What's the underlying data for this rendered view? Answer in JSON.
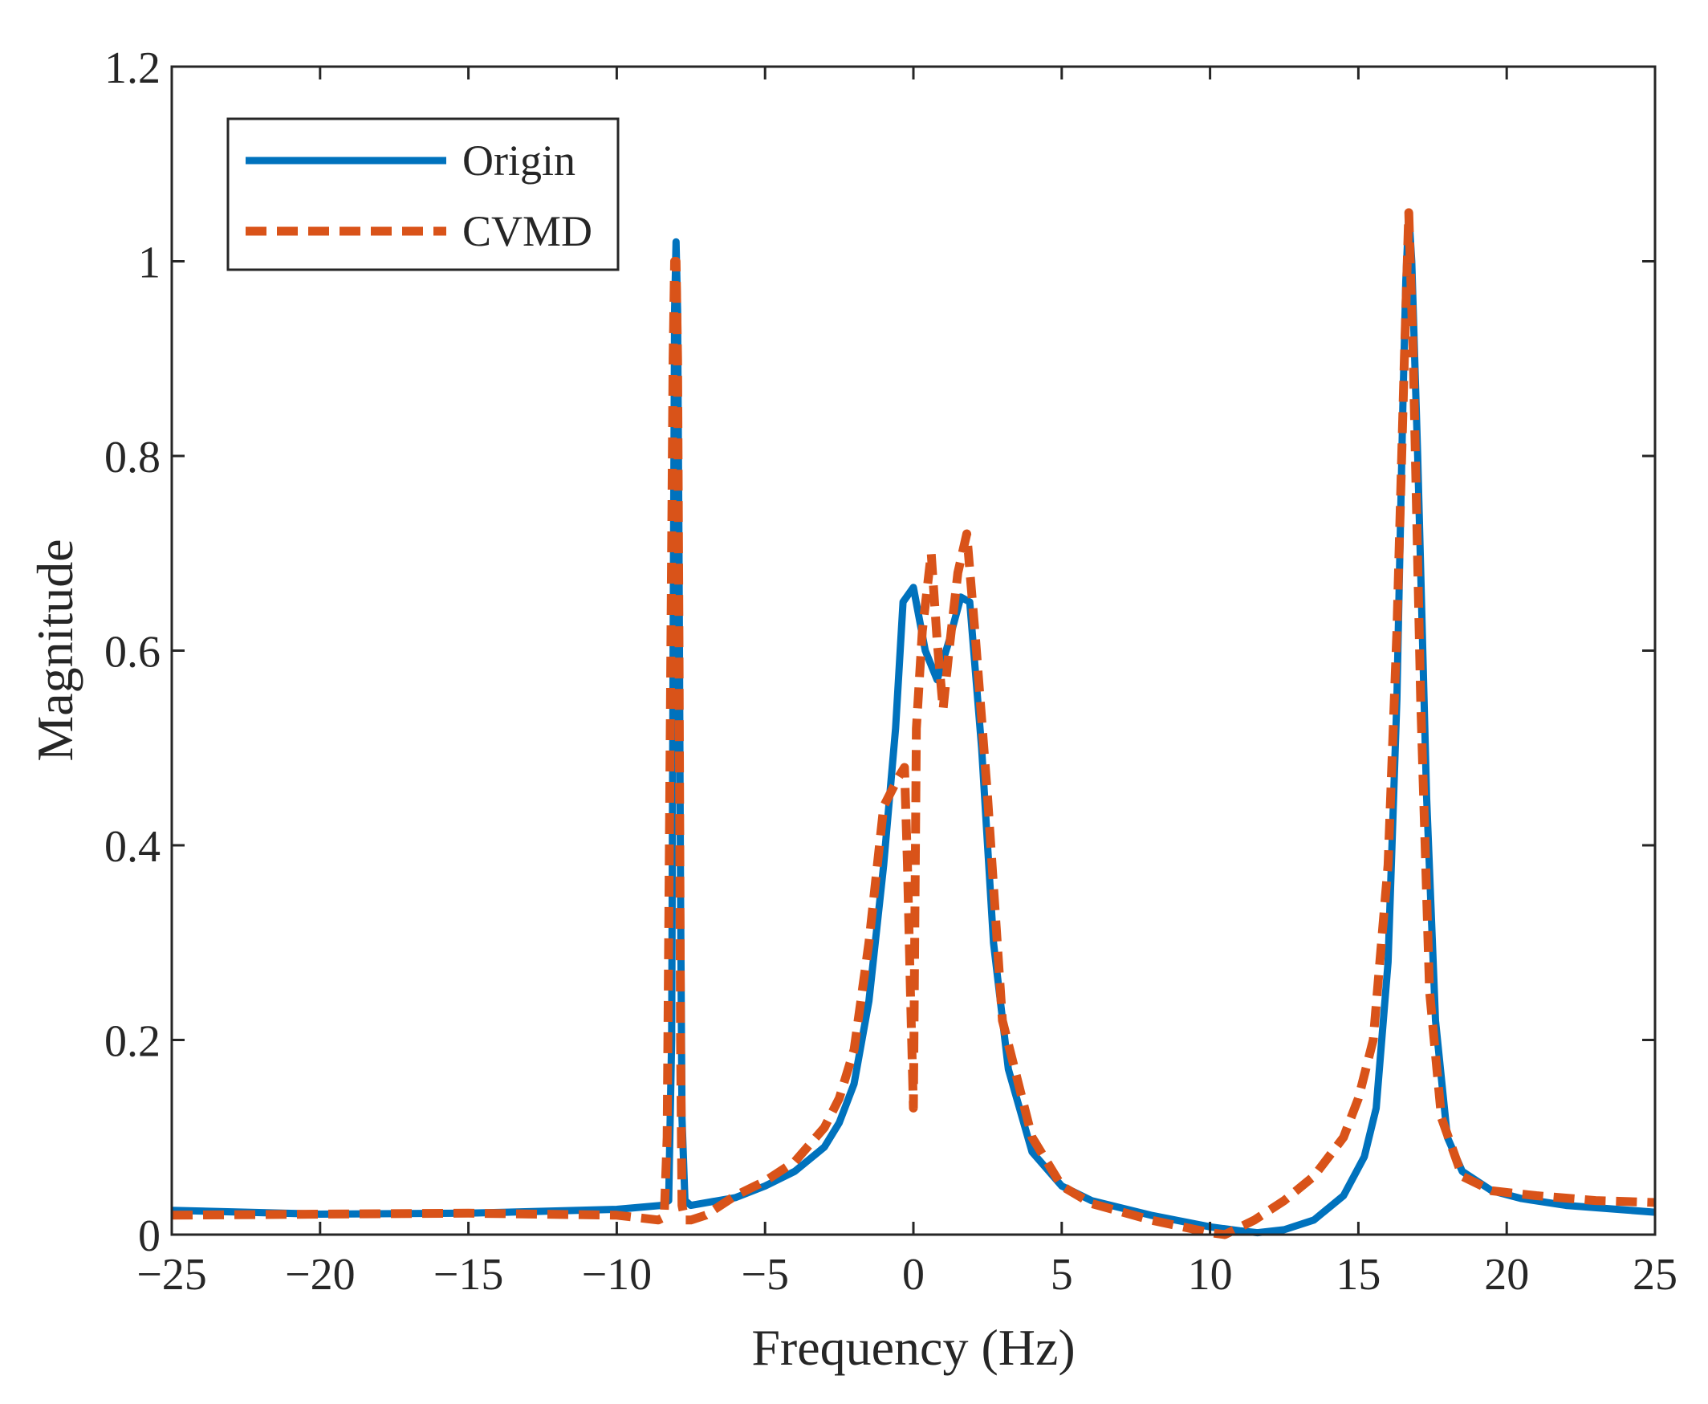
{
  "chart_data": {
    "type": "line",
    "title": "",
    "xlabel": "Frequency (Hz)",
    "ylabel": "Magnitude",
    "xlim": [
      -25,
      25
    ],
    "ylim": [
      0,
      1.2
    ],
    "grid": false,
    "legend_position": "top-left",
    "x_ticks": [
      -25,
      -20,
      -15,
      -10,
      -5,
      0,
      5,
      10,
      15,
      20,
      25
    ],
    "x_tick_labels": [
      "−25",
      "−20",
      "−15",
      "−10",
      "−5",
      "0",
      "5",
      "10",
      "15",
      "20",
      "25"
    ],
    "y_ticks": [
      0,
      0.2,
      0.4,
      0.6,
      0.8,
      1,
      1.2
    ],
    "y_tick_labels": [
      "0",
      "0.2",
      "0.4",
      "0.6",
      "0.8",
      "1",
      "1.2"
    ],
    "series": [
      {
        "name": "Origin",
        "color": "#0072BD",
        "style": "solid",
        "x": [
          -25,
          -20,
          -15,
          -10,
          -8.5,
          -8.25,
          -8.15,
          -8.1,
          -8.05,
          -8.0,
          -7.95,
          -7.9,
          -7.85,
          -7.8,
          -7.7,
          -7.5,
          -6,
          -5,
          -4,
          -3,
          -2.5,
          -2,
          -1.5,
          -1,
          -0.6,
          -0.35,
          0,
          0.4,
          0.8,
          1.2,
          1.6,
          1.9,
          2.3,
          2.7,
          3.2,
          4,
          5,
          6,
          8,
          10,
          11,
          11.6,
          12.5,
          13.5,
          14.5,
          15.2,
          15.6,
          16,
          16.3,
          16.5,
          16.6,
          16.7,
          16.8,
          17,
          17.3,
          17.6,
          18,
          18.5,
          19.5,
          20.5,
          22,
          25
        ],
        "y": [
          0.025,
          0.021,
          0.022,
          0.026,
          0.03,
          0.035,
          0.2,
          0.6,
          0.95,
          1.02,
          0.95,
          0.7,
          0.35,
          0.12,
          0.035,
          0.03,
          0.038,
          0.05,
          0.065,
          0.09,
          0.115,
          0.155,
          0.24,
          0.38,
          0.52,
          0.65,
          0.665,
          0.6,
          0.57,
          0.61,
          0.655,
          0.65,
          0.5,
          0.3,
          0.17,
          0.085,
          0.05,
          0.035,
          0.02,
          0.008,
          0.004,
          0.002,
          0.005,
          0.015,
          0.04,
          0.08,
          0.13,
          0.28,
          0.55,
          0.85,
          0.98,
          1.05,
          1.0,
          0.8,
          0.45,
          0.22,
          0.1,
          0.065,
          0.045,
          0.037,
          0.03,
          0.023
        ]
      },
      {
        "name": "CVMD",
        "color": "#D95319",
        "style": "dashed",
        "x": [
          -25,
          -20,
          -15,
          -10,
          -8.6,
          -8.4,
          -8.3,
          -8.2,
          -8.1,
          -8.05,
          -8.0,
          -7.95,
          -7.9,
          -7.85,
          -7.8,
          -7.7,
          -7.5,
          -7,
          -6,
          -5,
          -4,
          -3,
          -2.5,
          -2,
          -1.5,
          -1,
          -0.5,
          -0.3,
          -0.2,
          -0.1,
          0,
          0.1,
          0.3,
          0.6,
          0.8,
          1.0,
          1.2,
          1.5,
          1.8,
          2.1,
          2.5,
          3,
          4,
          5,
          6,
          8,
          10,
          10.5,
          11.5,
          12.5,
          13.5,
          14.5,
          15,
          15.5,
          16,
          16.3,
          16.55,
          16.7,
          16.85,
          17.1,
          17.4,
          17.8,
          18.5,
          19.5,
          21,
          23,
          25
        ],
        "y": [
          0.02,
          0.021,
          0.022,
          0.02,
          0.015,
          0.018,
          0.1,
          0.5,
          0.9,
          1.0,
          1.0,
          0.9,
          0.6,
          0.2,
          0.03,
          0.015,
          0.015,
          0.02,
          0.04,
          0.055,
          0.075,
          0.11,
          0.14,
          0.19,
          0.3,
          0.44,
          0.47,
          0.48,
          0.38,
          0.25,
          0.13,
          0.52,
          0.62,
          0.7,
          0.61,
          0.54,
          0.6,
          0.68,
          0.72,
          0.61,
          0.45,
          0.22,
          0.1,
          0.05,
          0.032,
          0.015,
          0.002,
          0.0,
          0.015,
          0.035,
          0.06,
          0.1,
          0.14,
          0.2,
          0.38,
          0.62,
          0.9,
          1.05,
          0.9,
          0.55,
          0.25,
          0.12,
          0.06,
          0.045,
          0.04,
          0.035,
          0.033
        ]
      }
    ]
  }
}
